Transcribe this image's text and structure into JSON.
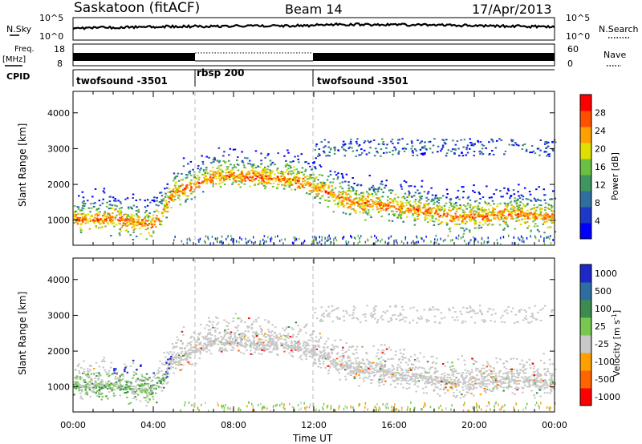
{
  "header": {
    "station": "Saskatoon (fitACF)",
    "beam": "Beam 14",
    "date": "17/Apr/2013"
  },
  "noise_panel": {
    "left_label": "N.Sky",
    "right_label": "N.Search",
    "ticks_left": [
      "10^5",
      "10^0"
    ],
    "ticks_right": [
      "10^5",
      "10^0"
    ]
  },
  "freq_panel": {
    "left_label_line1": "Freq.",
    "left_label_line2": "[MHz]",
    "right_label": "Nave",
    "ticks_left": [
      "18",
      "8"
    ],
    "ticks_right": [
      "60",
      "0"
    ]
  },
  "cpid": {
    "label": "CPID",
    "segments": [
      {
        "name": "twofsound -3501",
        "start_hour": 0,
        "end_hour": 6
      },
      {
        "name": "rbsp 200",
        "start_hour": 6,
        "end_hour": 12
      },
      {
        "name": "twofsound -3501",
        "start_hour": 12,
        "end_hour": 24
      }
    ]
  },
  "chart_data": [
    {
      "type": "heatmap",
      "panel": "power",
      "xlabel": "",
      "ylabel": "Slant Range [km]",
      "xlim": [
        0,
        24
      ],
      "ylim": [
        300,
        4600
      ],
      "yticks": [
        1000,
        2000,
        3000,
        4000
      ],
      "xticks_hours": [
        0,
        4,
        8,
        12,
        16,
        20,
        24
      ],
      "colorbar": {
        "label": "Power [dB]",
        "range": [
          0,
          32
        ],
        "ticks": [
          4,
          8,
          12,
          16,
          20,
          24,
          28
        ],
        "colors": [
          "#0000ff",
          "#1e38c8",
          "#2f6fa0",
          "#3f9660",
          "#6ac040",
          "#e0e000",
          "#ffa000",
          "#ff5000",
          "#ff0000"
        ]
      },
      "echo_trace_km": {
        "hours": [
          0,
          1,
          2,
          3,
          4,
          4.5,
          5,
          6,
          7,
          8,
          9,
          10,
          11,
          12,
          13,
          14,
          15,
          16,
          17,
          18,
          19,
          20,
          21,
          22,
          23,
          24
        ],
        "range_km": [
          1050,
          1000,
          1050,
          950,
          900,
          1300,
          1800,
          2000,
          2250,
          2250,
          2200,
          2200,
          2150,
          1950,
          1700,
          1500,
          1450,
          1400,
          1300,
          1200,
          1100,
          1100,
          1150,
          1200,
          1150,
          1100
        ]
      }
    },
    {
      "type": "heatmap",
      "panel": "velocity",
      "xlabel": "Time UT",
      "ylabel": "Slant Range [km]",
      "xlim": [
        0,
        24
      ],
      "ylim": [
        300,
        4600
      ],
      "yticks": [
        1000,
        2000,
        3000,
        4000
      ],
      "xticks": [
        "00:00",
        "04:00",
        "08:00",
        "12:00",
        "16:00",
        "20:00",
        "00:00"
      ],
      "colorbar": {
        "label": "Velocity [m s^-1]",
        "ticks": [
          1000,
          500,
          100,
          25,
          -25,
          -100,
          -500,
          -1000
        ],
        "colors": [
          "#1e28c8",
          "#2d6ea0",
          "#3c8c50",
          "#78c850",
          "#c8c8c8",
          "#ffa000",
          "#ff6400",
          "#ff0000"
        ]
      }
    }
  ]
}
